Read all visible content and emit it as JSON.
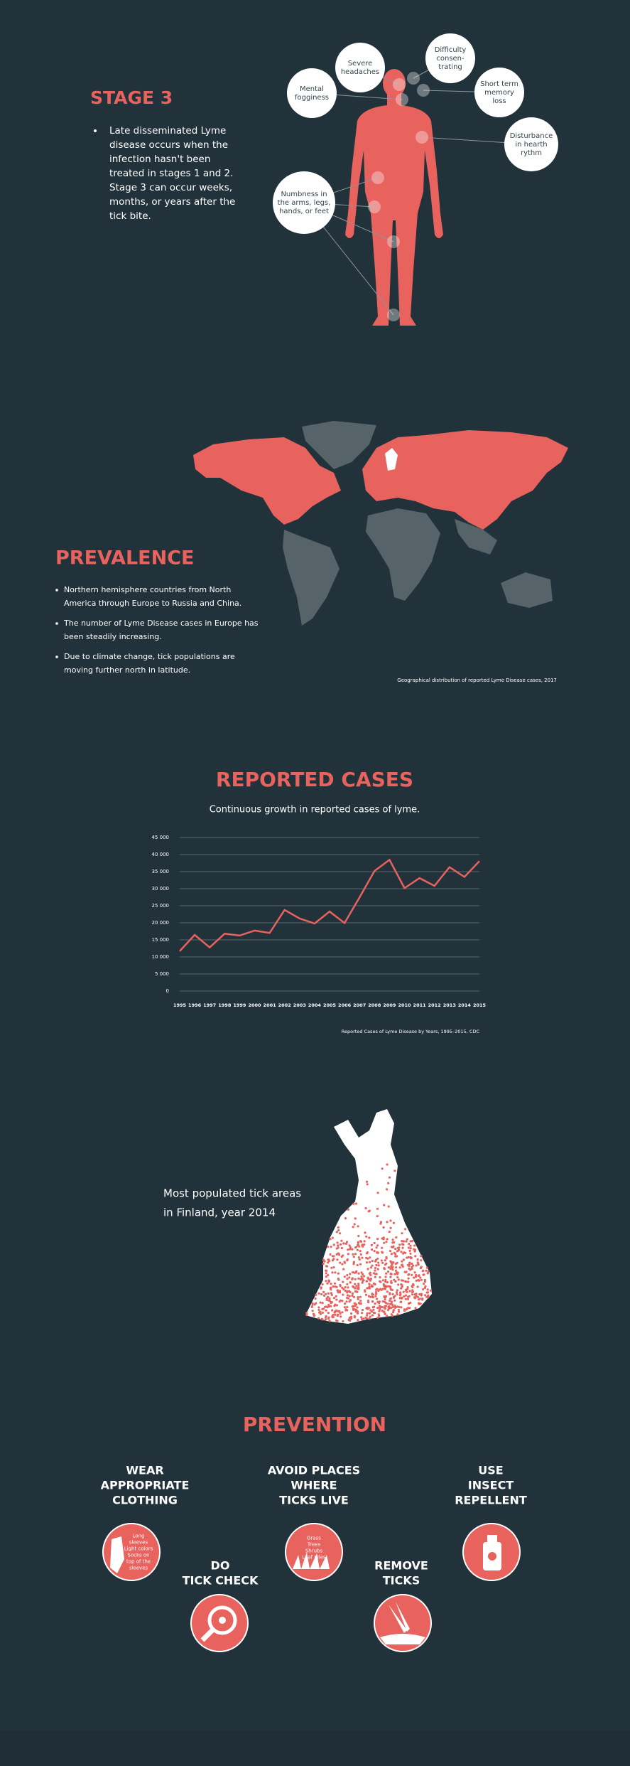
{
  "stage3": {
    "title": "STAGE  3",
    "text": [
      "Late disseminated Lyme",
      "disease occurs when the",
      "infection hasn't been",
      "treated in stages 1 and 2.",
      "Stage 3 can occur weeks,",
      "months, or years after the",
      "tick bite."
    ],
    "symptoms": [
      {
        "lines": [
          "Severe",
          "headaches"
        ]
      },
      {
        "lines": [
          "Difficulty",
          "consen-",
          "trating"
        ]
      },
      {
        "lines": [
          "Mental",
          "fogginess"
        ]
      },
      {
        "lines": [
          "Short term",
          "memory",
          "loss"
        ]
      },
      {
        "lines": [
          "Disturbance",
          "in hearth",
          "rythm"
        ]
      },
      {
        "lines": [
          "Numbness in",
          "the arms, legs,",
          "hands, or feet"
        ]
      }
    ]
  },
  "prevalence": {
    "title": "PREVALENCE",
    "bullets": [
      [
        "Northern hemisphere countries from North",
        "America through Europe to Russia and China."
      ],
      [
        "The number of Lyme Disease cases in Europe has",
        "been steadily increasing."
      ],
      [
        "Due to climate change, tick populations are",
        "moving further north in latitude."
      ]
    ],
    "caption": "Geographical distribution of reported Lyme Disease cases, 2017"
  },
  "chart_data": {
    "type": "line",
    "title": "REPORTED CASES",
    "subtitle": "Continuous growth in reported cases of lyme.",
    "caption": "Reported Cases of Lyme Disease by Years, 1995–2015, CDC",
    "categories": [
      "1995",
      "1996",
      "1997",
      "1998",
      "1999",
      "2000",
      "2001",
      "2002",
      "2003",
      "2004",
      "2005",
      "2006",
      "2007",
      "2008",
      "2009",
      "2010",
      "2011",
      "2012",
      "2013",
      "2014",
      "2015"
    ],
    "values": [
      11700,
      16455,
      12801,
      16801,
      16273,
      17730,
      17029,
      23763,
      21273,
      19804,
      23305,
      19931,
      27444,
      35198,
      38468,
      30158,
      33097,
      30831,
      36307,
      33461,
      38069
    ],
    "color": "#e8625e",
    "ylim": [
      0,
      45000
    ],
    "yticks": [
      0,
      {
        "value": 5000,
        "label": "5 000"
      },
      {
        "value": 10000,
        "label": "10 000"
      },
      {
        "value": 15000,
        "label": "15 000"
      },
      {
        "value": 20000,
        "label": "20 000"
      },
      {
        "value": 25000,
        "label": "25 000"
      },
      {
        "value": 30000,
        "label": "30 000"
      },
      {
        "value": 35000,
        "label": "35 000"
      },
      {
        "value": 40000,
        "label": "40 000"
      },
      {
        "value": 45000,
        "label": "45 000"
      }
    ],
    "grid": true
  },
  "finland": {
    "text": [
      "Most populated tick areas",
      "in Finland, year 2014"
    ]
  },
  "prevention": {
    "title": "PREVENTION",
    "items": [
      {
        "lines": [
          "WEAR",
          "APPROPRIATE",
          "CLOTHING"
        ],
        "icon": [
          "Long",
          "sleeves",
          "Light colors",
          "Socks on",
          "top of the",
          "sleeves"
        ]
      },
      {
        "lines": [
          "AVOID PLACES",
          "WHERE",
          "TICKS LIVE"
        ],
        "icon": [
          "Grass",
          "Trees",
          "Shrubs",
          "Leaf piles"
        ]
      },
      {
        "lines": [
          "USE",
          "INSECT",
          "REPELLENT"
        ]
      },
      {
        "lines": [
          "DO",
          "TICK CHECK"
        ]
      },
      {
        "lines": [
          "REMOVE",
          "TICKS"
        ]
      }
    ]
  }
}
